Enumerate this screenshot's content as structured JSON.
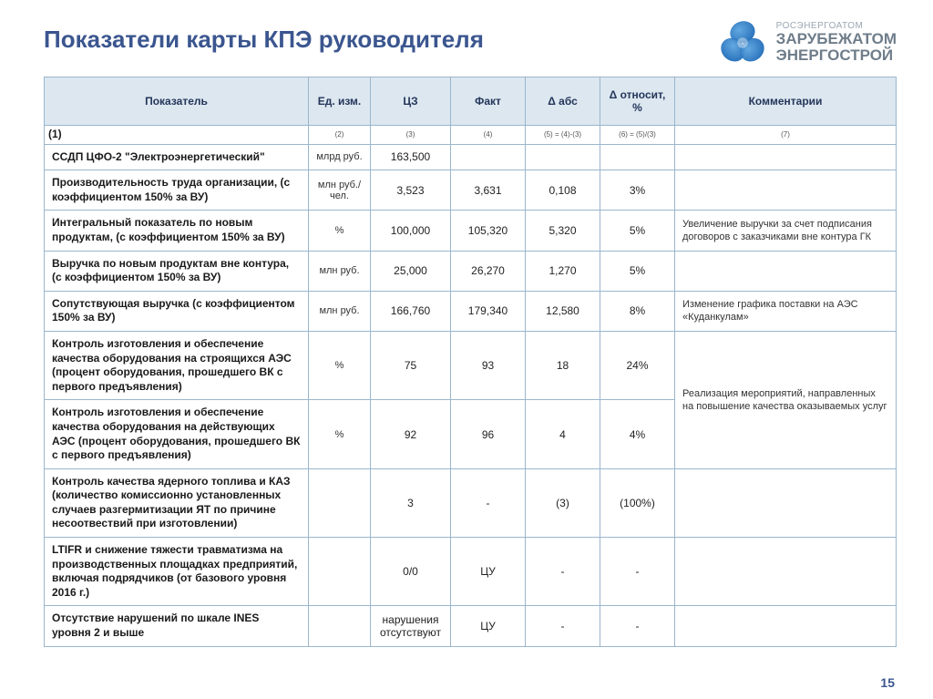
{
  "title": "Показатели карты КПЭ руководителя",
  "logo": {
    "line1": "РОСЭНЕРГОАТОМ",
    "line2": "ЗАРУБЕЖАТОМ",
    "line3": "ЭНЕРГОСТРОЙ",
    "icon_color": "#1e6bb8",
    "icon_shadow": "#5aa3de"
  },
  "page_number": "15",
  "table": {
    "header_bg": "#dce7f0",
    "border_color": "#9bb6cc",
    "columns": [
      {
        "label": "Показатель",
        "num": "(1)"
      },
      {
        "label": "Ед. изм.",
        "num": "(2)"
      },
      {
        "label": "ЦЗ",
        "num": "(3)"
      },
      {
        "label": "Факт",
        "num": "(4)"
      },
      {
        "label": "Δ абс",
        "num": "(5) = (4)-(3)"
      },
      {
        "label": "Δ относит, %",
        "num": "(6) = (5)/(3)"
      },
      {
        "label": "Комментарии",
        "num": "(7)"
      }
    ],
    "rows": [
      {
        "name": "ССДП ЦФО-2 \"Электроэнергетический\"",
        "unit": "млрд руб.",
        "cz": "163,500",
        "fact": "",
        "dabs": "",
        "drel": "",
        "comment": ""
      },
      {
        "name": "Производительность труда организации, (с коэффициентом 150% за ВУ)",
        "unit": "млн руб./чел.",
        "cz": "3,523",
        "fact": "3,631",
        "dabs": "0,108",
        "drel": "3%",
        "comment": ""
      },
      {
        "name": "Интегральный показатель по новым продуктам, (с коэффициентом 150% за ВУ)",
        "unit": "%",
        "cz": "100,000",
        "fact": "105,320",
        "dabs": "5,320",
        "drel": "5%",
        "comment": "Увеличение выручки за счет подписания договоров с заказчиками вне контура ГК"
      },
      {
        "name": "Выручка по новым продуктам вне контура, (с коэффициентом 150% за ВУ)",
        "unit": "млн руб.",
        "cz": "25,000",
        "fact": "26,270",
        "dabs": "1,270",
        "drel": "5%",
        "comment": ""
      },
      {
        "name": "Сопутствующая выручка (с коэффициентом 150% за ВУ)",
        "unit": "млн руб.",
        "cz": "166,760",
        "fact": "179,340",
        "dabs": "12,580",
        "drel": "8%",
        "comment": "Изменение графика поставки на АЭС «Куданкулам»"
      },
      {
        "name": "Контроль изготовления и обеспечение качества оборудования на строящихся АЭС (процент оборудования, прошедшего ВК с первого предъявления)",
        "unit": "%",
        "cz": "75",
        "fact": "93",
        "dabs": "18",
        "drel": "24%",
        "comment_span": 2,
        "comment": "Реализация мероприятий, направленных на повышение качества оказываемых услуг"
      },
      {
        "name": "Контроль изготовления и обеспечение качества оборудования на действующих АЭС (процент оборудования, прошедшего ВК с первого предъявления)",
        "unit": "%",
        "cz": "92",
        "fact": "96",
        "dabs": "4",
        "drel": "4%",
        "comment_skip": true
      },
      {
        "name": "Контроль качества ядерного топлива и КАЗ (количество комиссионно установленных случаев разгермитизации ЯТ по причине несоотвествий при изготовлении)",
        "unit": "",
        "cz": "3",
        "fact": "-",
        "dabs": "(3)",
        "drel": "(100%)",
        "comment": ""
      },
      {
        "name": "LTIFR и снижение тяжести травматизма на производственных площадках предприятий, включая подрядчиков (от базового уровня 2016 г.)",
        "unit": "",
        "cz": "0/0",
        "fact": "ЦУ",
        "dabs": "-",
        "drel": "-",
        "comment": ""
      },
      {
        "name": "Отсутствие нарушений по шкале INES уровня 2 и выше",
        "unit": "",
        "cz": "нарушения отсутствуют",
        "fact": "ЦУ",
        "dabs": "-",
        "drel": "-",
        "comment": ""
      }
    ]
  }
}
